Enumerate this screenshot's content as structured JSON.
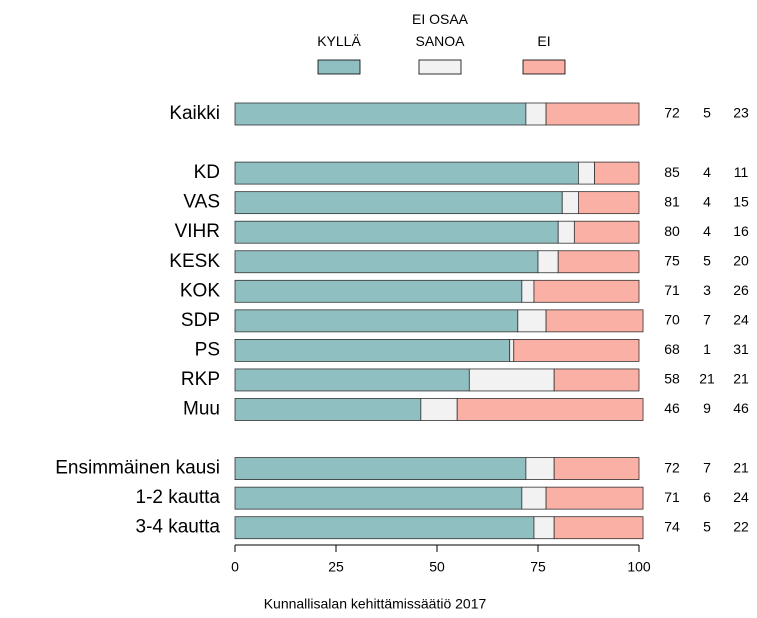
{
  "chart_data": {
    "type": "stacked-barh",
    "categories": [
      "Kaikki",
      "KD",
      "VAS",
      "VIHR",
      "KESK",
      "KOK",
      "SDP",
      "PS",
      "RKP",
      "Muu",
      "Ensimmäinen kausi",
      "1-2 kautta",
      "3-4 kautta"
    ],
    "series": [
      {
        "name": "KYLLÄ",
        "color": "#8fbfc1",
        "values": [
          72,
          85,
          81,
          80,
          75,
          71,
          70,
          68,
          58,
          46,
          72,
          71,
          74
        ]
      },
      {
        "name": "EI OSAA\nSANOA",
        "color": "#f2f2f2",
        "values": [
          5,
          4,
          4,
          4,
          5,
          3,
          7,
          1,
          21,
          9,
          7,
          6,
          5
        ]
      },
      {
        "name": "EI",
        "color": "#fbb0a5",
        "values": [
          23,
          11,
          15,
          16,
          20,
          26,
          24,
          31,
          21,
          46,
          21,
          24,
          22
        ]
      }
    ],
    "xlim": [
      0,
      100
    ],
    "xticks": [
      0,
      25,
      50,
      75,
      100
    ],
    "source": "Kunnallisalan kehittämissäätiö 2017"
  }
}
